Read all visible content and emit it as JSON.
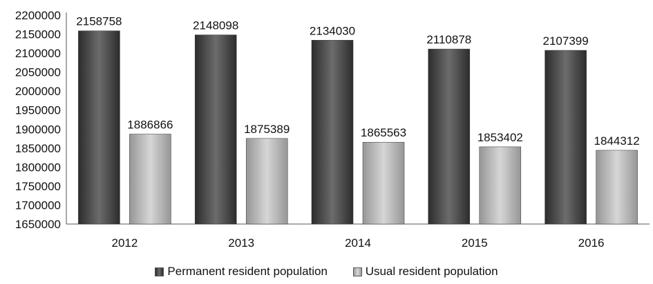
{
  "chart_data": {
    "type": "bar",
    "categories": [
      "2012",
      "2013",
      "2014",
      "2015",
      "2016"
    ],
    "series": [
      {
        "name": "Permanent resident population",
        "color": "#4a4a4a",
        "values": [
          2158758,
          2148098,
          2134030,
          2110878,
          2107399
        ]
      },
      {
        "name": "Usual resident population",
        "color": "#b4b4b4",
        "values": [
          1886866,
          1875389,
          1865563,
          1853402,
          1844312
        ]
      }
    ],
    "ylim": [
      1650000,
      2200000
    ],
    "yticks": [
      "1650000",
      "1700000",
      "1750000",
      "1800000",
      "1850000",
      "1900000",
      "1950000",
      "2000000",
      "2050000",
      "2100000",
      "2150000",
      "2200000"
    ],
    "grid": false,
    "legend_position": "bottom",
    "data_labels": true
  }
}
